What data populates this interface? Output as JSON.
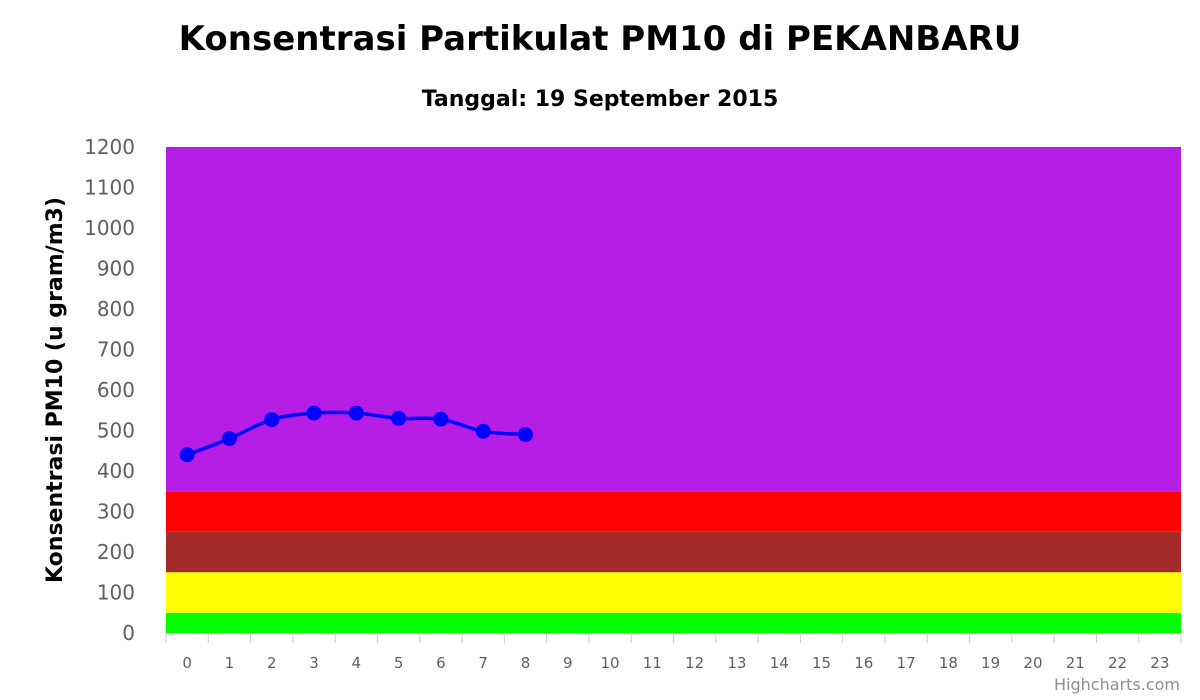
{
  "chart_data": {
    "type": "line",
    "title": "Konsentrasi Partikulat PM10 di PEKANBARU",
    "subtitle": "Tanggal: 19 September 2015",
    "xlabel": "",
    "ylabel": "Konsentrasi PM10 (u gram/m3)",
    "categories": [
      "0",
      "1",
      "2",
      "3",
      "4",
      "5",
      "6",
      "7",
      "8",
      "9",
      "10",
      "11",
      "12",
      "13",
      "14",
      "15",
      "16",
      "17",
      "18",
      "19",
      "20",
      "21",
      "22",
      "23"
    ],
    "ylim": [
      0,
      1200
    ],
    "yticks": [
      "0",
      "100",
      "200",
      "300",
      "400",
      "500",
      "600",
      "700",
      "800",
      "900",
      "1000",
      "1100",
      "1200"
    ],
    "series": [
      {
        "x": [
          0,
          1,
          2,
          3,
          4,
          5,
          6,
          7,
          8
        ],
        "values": [
          440,
          480,
          527,
          543,
          543,
          530,
          528,
          498,
          490
        ],
        "color": "#0000ff"
      }
    ],
    "bands": [
      {
        "from": 0,
        "to": 50,
        "color": "#00ff00"
      },
      {
        "from": 50,
        "to": 150,
        "color": "#ffff00"
      },
      {
        "from": 150,
        "to": 250,
        "color": "#a52a2a"
      },
      {
        "from": 250,
        "to": 350,
        "color": "#ff0000"
      },
      {
        "from": 350,
        "to": 1200,
        "color": "#b71ee5"
      }
    ],
    "grid": false,
    "credit": "Highcharts.com"
  }
}
